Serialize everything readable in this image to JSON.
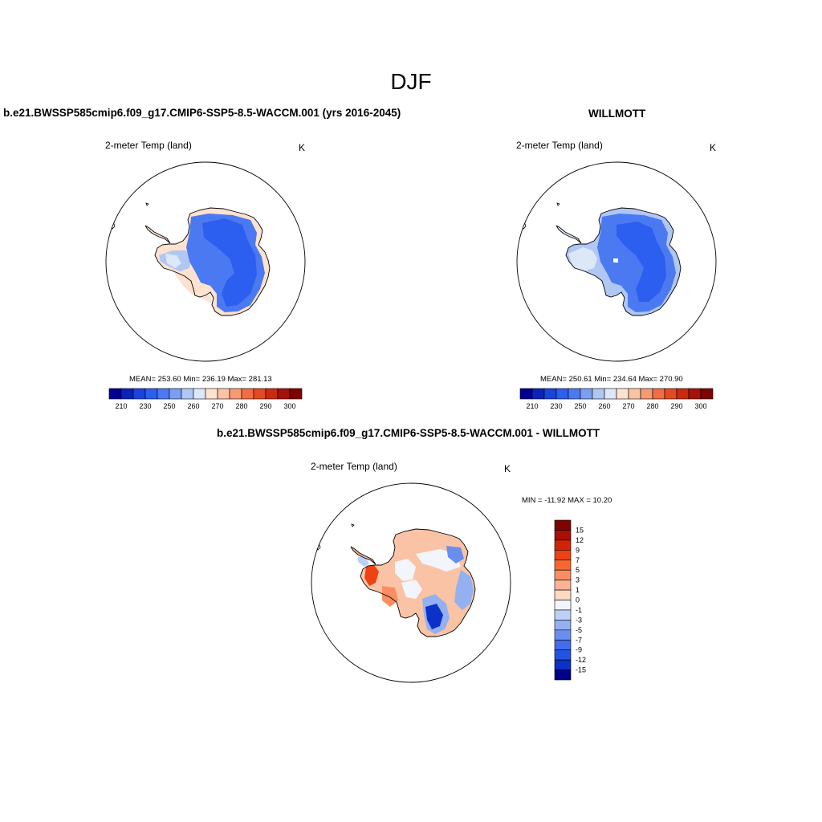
{
  "figure_title": "DJF",
  "colors": {
    "ramp": [
      "#000096",
      "#0b22b8",
      "#1a43dc",
      "#2c5ef0",
      "#4b79f2",
      "#7a9ff0",
      "#b0c7f4",
      "#dce8f8",
      "#fde2d0",
      "#fbc3a5",
      "#f79a74",
      "#f06e45",
      "#e44a22",
      "#cc2a10",
      "#a5120b",
      "#7e0400"
    ],
    "diff_ramp": [
      "#7e0400",
      "#ab0e06",
      "#d12406",
      "#ee4215",
      "#f76830",
      "#fa8e62",
      "#fbb395",
      "#fdd8c2",
      "#f2f6fc",
      "#bcd0f5",
      "#93b1f1",
      "#6a8ef0",
      "#426ceb",
      "#2453e2",
      "#0b31c6",
      "#000088"
    ]
  },
  "panels": [
    {
      "title": "b.e21.BWSSP585cmip6.f09_g17.CMIP6-SSP5-8.5-WACCM.001 (yrs 2016-2045)",
      "variable": "2-meter Temp (land)",
      "units": "K",
      "stats": "MEAN= 253.60   Min= 236.19   Max= 281.13",
      "colorbar_ticks": [
        "210",
        "230",
        "250",
        "260",
        "270",
        "280",
        "290",
        "300"
      ]
    },
    {
      "title": "WILLMOTT",
      "variable": "2-meter Temp (land)",
      "units": "K",
      "stats": "MEAN= 250.61   Min= 234.64   Max= 270.90",
      "colorbar_ticks": [
        "210",
        "230",
        "250",
        "260",
        "270",
        "280",
        "290",
        "300"
      ]
    },
    {
      "title": "b.e21.BWSSP585cmip6.f09_g17.CMIP6-SSP5-8.5-WACCM.001 - WILLMOTT",
      "variable": "2-meter Temp (land)",
      "units": "K",
      "stats": "MIN = -11.92 MAX =  10.20",
      "colorbar_ticks": [
        "15",
        "12",
        "9",
        "7",
        "5",
        "3",
        "1",
        "0",
        "-1",
        "-3",
        "-5",
        "-7",
        "-9",
        "-12",
        "-15"
      ]
    }
  ]
}
